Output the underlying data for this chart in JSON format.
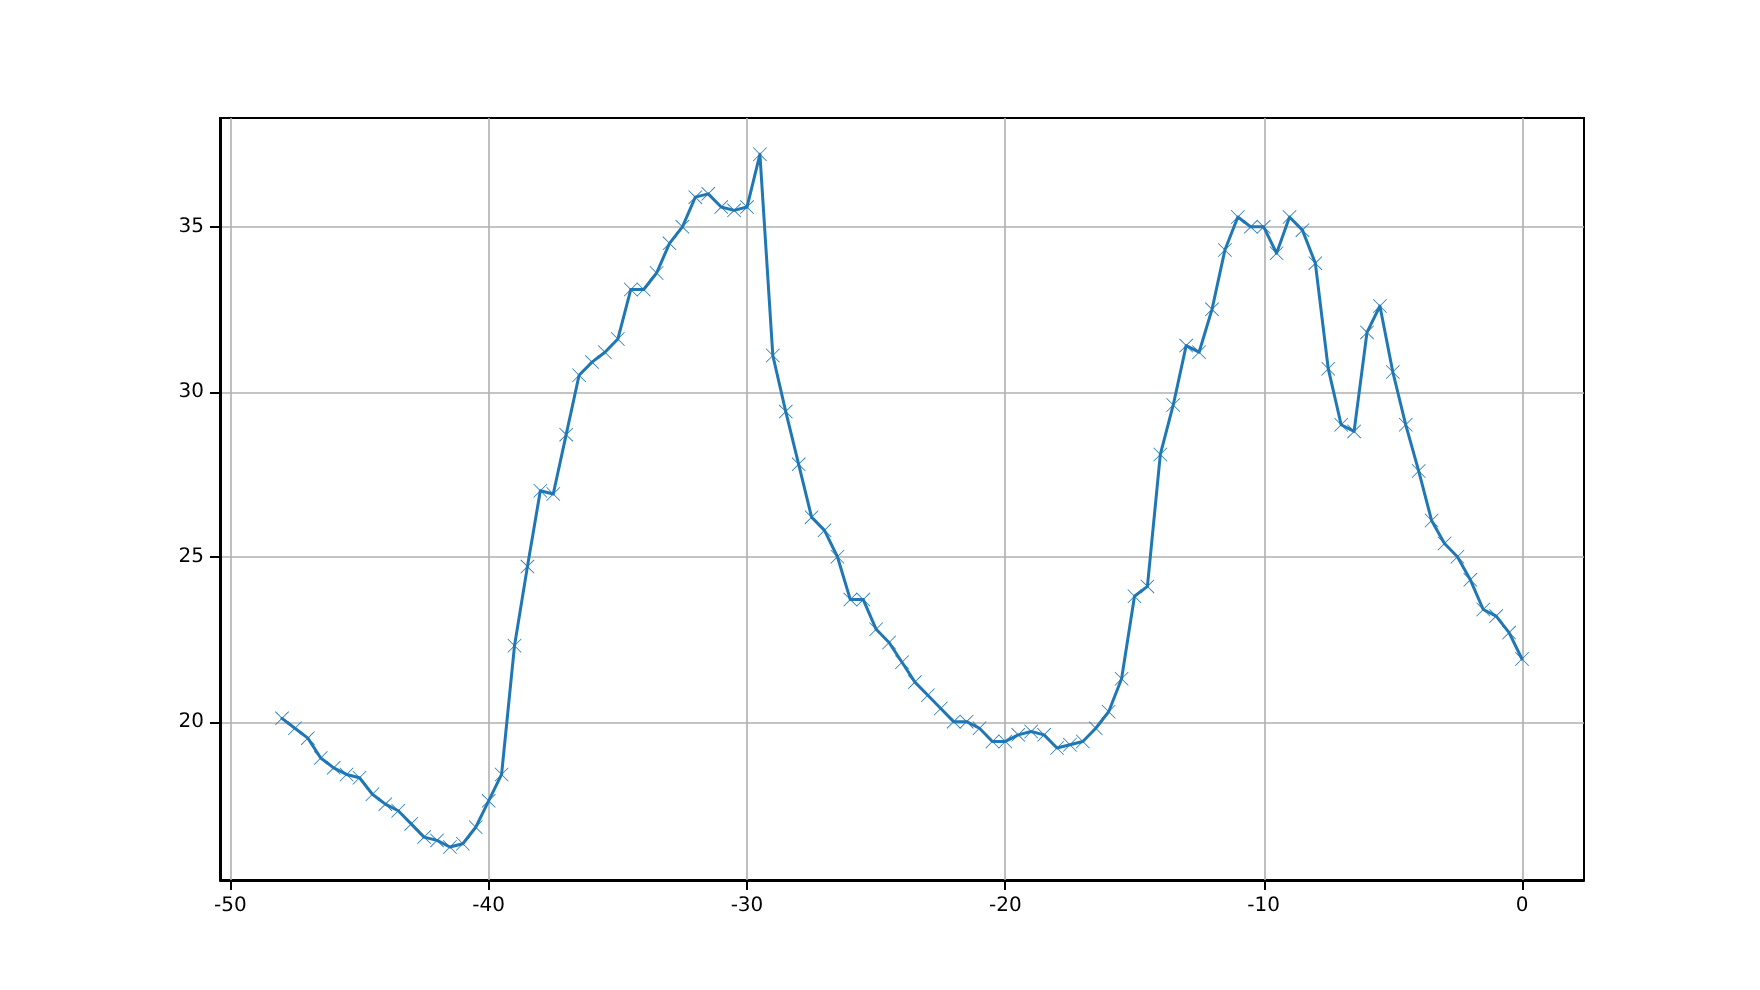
{
  "chart_data": {
    "type": "line",
    "x": [
      -48,
      -47.5,
      -47,
      -46.5,
      -46,
      -45.5,
      -45,
      -44.5,
      -44,
      -43.5,
      -43,
      -42.5,
      -42,
      -41.5,
      -41,
      -40.5,
      -40,
      -39.5,
      -39,
      -38.5,
      -38,
      -37.5,
      -37,
      -36.5,
      -36,
      -35.5,
      -35,
      -34.5,
      -34,
      -33.5,
      -33,
      -32.5,
      -32,
      -31.5,
      -31,
      -30.5,
      -30,
      -29.5,
      -29,
      -28.5,
      -28,
      -27.5,
      -27,
      -26.5,
      -26,
      -25.5,
      -25,
      -24.5,
      -24,
      -23.5,
      -23,
      -22.5,
      -22,
      -21.5,
      -21,
      -20.5,
      -20,
      -19.5,
      -19,
      -18.5,
      -18,
      -17.5,
      -17,
      -16.5,
      -16,
      -15.5,
      -15,
      -14.5,
      -14,
      -13.5,
      -13,
      -12.5,
      -12,
      -11.5,
      -11,
      -10.5,
      -10,
      -9.5,
      -9,
      -8.5,
      -8,
      -7.5,
      -7,
      -6.5,
      -6,
      -5.5,
      -5,
      -4.5,
      -4,
      -3.5,
      -3,
      -2.5,
      -2,
      -1.5,
      -1,
      -0.5,
      0
    ],
    "series": [
      {
        "color": "#1f77b4",
        "values": [
          20.1,
          19.8,
          19.5,
          18.9,
          18.6,
          18.4,
          18.3,
          17.8,
          17.5,
          17.3,
          16.9,
          16.5,
          16.4,
          16.2,
          16.3,
          16.8,
          17.6,
          18.4,
          22.3,
          24.7,
          27.0,
          26.9,
          28.7,
          30.5,
          30.9,
          31.2,
          31.6,
          33.1,
          33.1,
          33.6,
          34.5,
          35.0,
          35.9,
          36.0,
          35.6,
          35.5,
          35.6,
          37.2,
          31.1,
          29.4,
          27.8,
          26.2,
          25.8,
          25.0,
          23.7,
          23.7,
          22.8,
          22.4,
          21.8,
          21.2,
          20.8,
          20.4,
          20.0,
          20.0,
          19.8,
          19.4,
          19.4,
          19.6,
          19.7,
          19.6,
          19.2,
          19.3,
          19.4,
          19.8,
          20.3,
          21.3,
          23.8,
          24.1,
          28.1,
          29.6,
          31.4,
          31.2,
          32.5,
          34.3,
          35.3,
          35.0,
          35.0,
          34.2,
          35.3,
          34.9,
          33.9,
          30.7,
          29.0,
          28.8,
          31.8,
          32.6,
          30.6,
          29.0,
          27.6,
          26.1,
          25.4,
          25.0,
          24.3,
          23.4,
          23.2,
          22.7,
          21.9
        ]
      }
    ],
    "xlim": [
      -50.4,
      2.4
    ],
    "ylim": [
      15.2,
      38.3
    ],
    "xticks": [
      -50,
      -40,
      -30,
      -20,
      -10,
      0
    ],
    "yticks": [
      20,
      25,
      30,
      35
    ],
    "grid": true,
    "marker": "cross",
    "line_style": "solid"
  }
}
